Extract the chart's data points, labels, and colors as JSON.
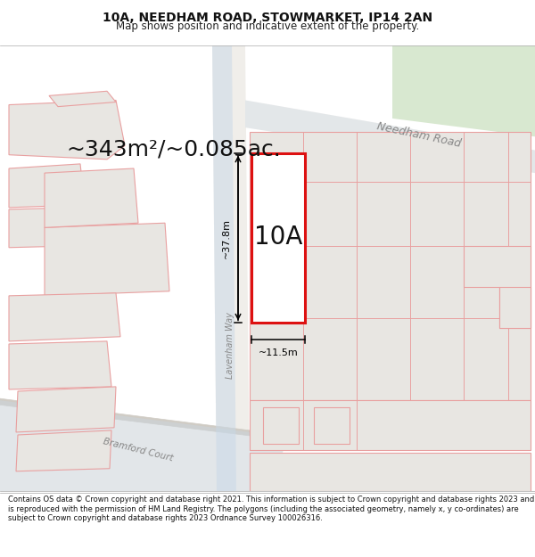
{
  "title_line1": "10A, NEEDHAM ROAD, STOWMARKET, IP14 2AN",
  "title_line2": "Map shows position and indicative extent of the property.",
  "footer_text": "Contains OS data © Crown copyright and database right 2021. This information is subject to Crown copyright and database rights 2023 and is reproduced with the permission of HM Land Registry. The polygons (including the associated geometry, namely x, y co-ordinates) are subject to Crown copyright and database rights 2023 Ordnance Survey 100026316.",
  "area_label": "~343m²/~0.085ac.",
  "width_label": "~11.5m",
  "height_label": "~37.8m",
  "plot_label": "10A",
  "road_label": "Needham Road",
  "road_label2": "Lavenham Way",
  "road_label3": "Bramford Court",
  "map_bg": "#f5f3f0",
  "building_fill": "#e8e6e2",
  "building_stroke": "#e8a0a0",
  "plot_stroke": "#dd1111",
  "plot_fill": "#e8e6e2",
  "road_fill": "#f0eeea",
  "road_blue": "#c8d8e8",
  "green_fill": "#d8e8d0",
  "title_fs": 10,
  "subtitle_fs": 8.5,
  "area_fs": 18,
  "plot_fs": 20,
  "road_fs": 9,
  "meas_fs": 8
}
